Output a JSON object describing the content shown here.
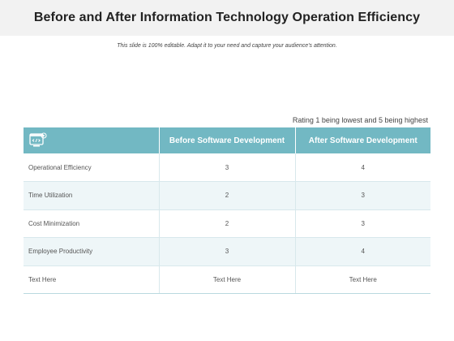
{
  "slide": {
    "title": "Before and After Information Technology Operation Efficiency",
    "subtitle": "This slide is 100% editable. Adapt it to your need and capture your audience's attention."
  },
  "table": {
    "note": "Rating 1 being lowest and 5 being highest",
    "header_icon": "computer-code-icon",
    "columns": [
      "",
      "Before Software Development",
      "After Software Development"
    ],
    "rows": [
      {
        "label": "Operational Efficiency",
        "before": "3",
        "after": "4"
      },
      {
        "label": "Time Utilization",
        "before": "2",
        "after": "3"
      },
      {
        "label": "Cost Minimization",
        "before": "2",
        "after": "3"
      },
      {
        "label": "Employee Productivity",
        "before": "3",
        "after": "4"
      },
      {
        "label": "Text Here",
        "before": "Text Here",
        "after": "Text Here"
      }
    ]
  },
  "colors": {
    "header": "#72b8c3",
    "alt_row": "#eef6f8",
    "title_bar": "#f2f2f2"
  }
}
